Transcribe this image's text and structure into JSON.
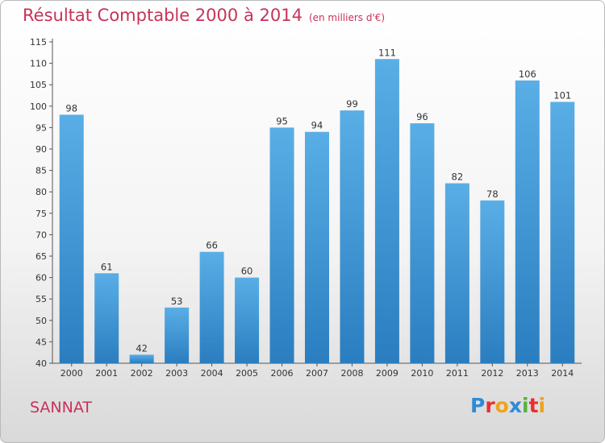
{
  "header": {
    "title": "Résultat Comptable 2000 à 2014",
    "subtitle": "(en milliers d'€)"
  },
  "footer": {
    "commune": "SANNAT",
    "logo_text": "Proxiti",
    "logo_letters": [
      {
        "char": "P",
        "color": "#2e8bd8"
      },
      {
        "char": "r",
        "color": "#e8302e"
      },
      {
        "char": "o",
        "color": "#f0a21a"
      },
      {
        "char": "x",
        "color": "#2e8bd8"
      },
      {
        "char": "i",
        "color": "#57b23a"
      },
      {
        "char": "t",
        "color": "#e8302e"
      },
      {
        "char": "i",
        "color": "#f0a21a"
      }
    ]
  },
  "colors": {
    "bar_top": "#5aaee6",
    "bar_bottom": "#2a7ec0",
    "title": "#c8325a"
  },
  "chart_data": {
    "type": "bar",
    "categories": [
      "2000",
      "2001",
      "2002",
      "2003",
      "2004",
      "2005",
      "2006",
      "2007",
      "2008",
      "2009",
      "2010",
      "2011",
      "2012",
      "2013",
      "2014"
    ],
    "values": [
      98,
      61,
      42,
      53,
      66,
      60,
      95,
      94,
      99,
      111,
      96,
      82,
      78,
      106,
      101
    ],
    "title": "Résultat Comptable 2000 à 2014",
    "xlabel": "",
    "ylabel": "",
    "ylim": [
      40,
      115
    ],
    "yticks": [
      40,
      45,
      50,
      55,
      60,
      65,
      70,
      75,
      80,
      85,
      90,
      95,
      100,
      105,
      110,
      115
    ],
    "grid": false,
    "legend": "none"
  }
}
